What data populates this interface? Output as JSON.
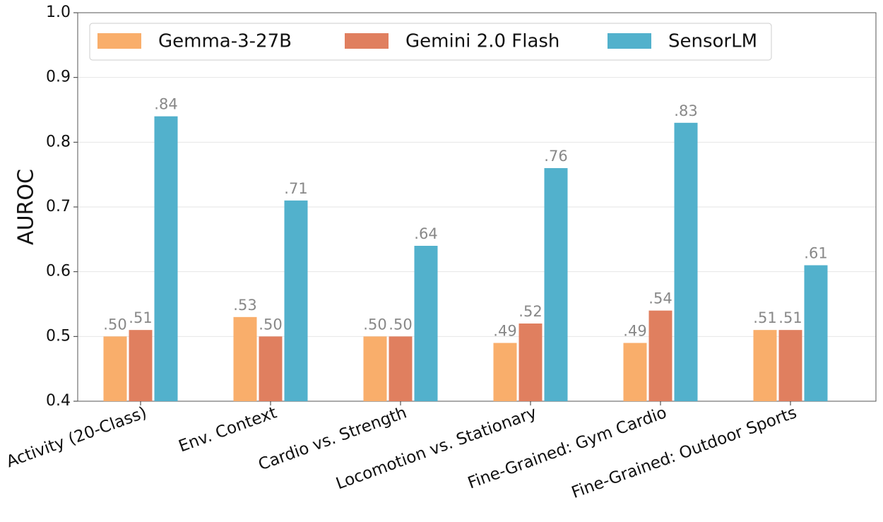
{
  "chart_data": {
    "type": "bar",
    "y_label": "AUROC",
    "categories": [
      "Activity (20-Class)",
      "Env. Context",
      "Cardio vs. Strength",
      "Locomotion vs. Stationary",
      "Fine-Grained: Gym Cardio",
      "Fine-Grained: Outdoor Sports"
    ],
    "series": [
      {
        "name": "Gemma-3-27B",
        "color": "#f9ae6b",
        "values": [
          0.5,
          0.53,
          0.5,
          0.49,
          0.49,
          0.51
        ],
        "value_labels": [
          ".50",
          ".53",
          ".50",
          ".49",
          ".49",
          ".51"
        ]
      },
      {
        "name": "Gemini 2.0 Flash",
        "color": "#e07f5f",
        "values": [
          0.51,
          0.5,
          0.5,
          0.52,
          0.54,
          0.51
        ],
        "value_labels": [
          ".51",
          ".50",
          ".50",
          ".52",
          ".54",
          ".51"
        ]
      },
      {
        "name": "SensorLM",
        "color": "#52b1cc",
        "values": [
          0.84,
          0.71,
          0.64,
          0.76,
          0.83,
          0.61
        ],
        "value_labels": [
          ".84",
          ".71",
          ".64",
          ".76",
          ".83",
          ".61"
        ]
      }
    ],
    "ylim": [
      0.4,
      1.0
    ],
    "yticks": [
      0.4,
      0.5,
      0.6,
      0.7,
      0.8,
      0.9,
      {
        "value": 1.0,
        "label": "1.0"
      }
    ],
    "grid": true,
    "legend_position": "top"
  }
}
